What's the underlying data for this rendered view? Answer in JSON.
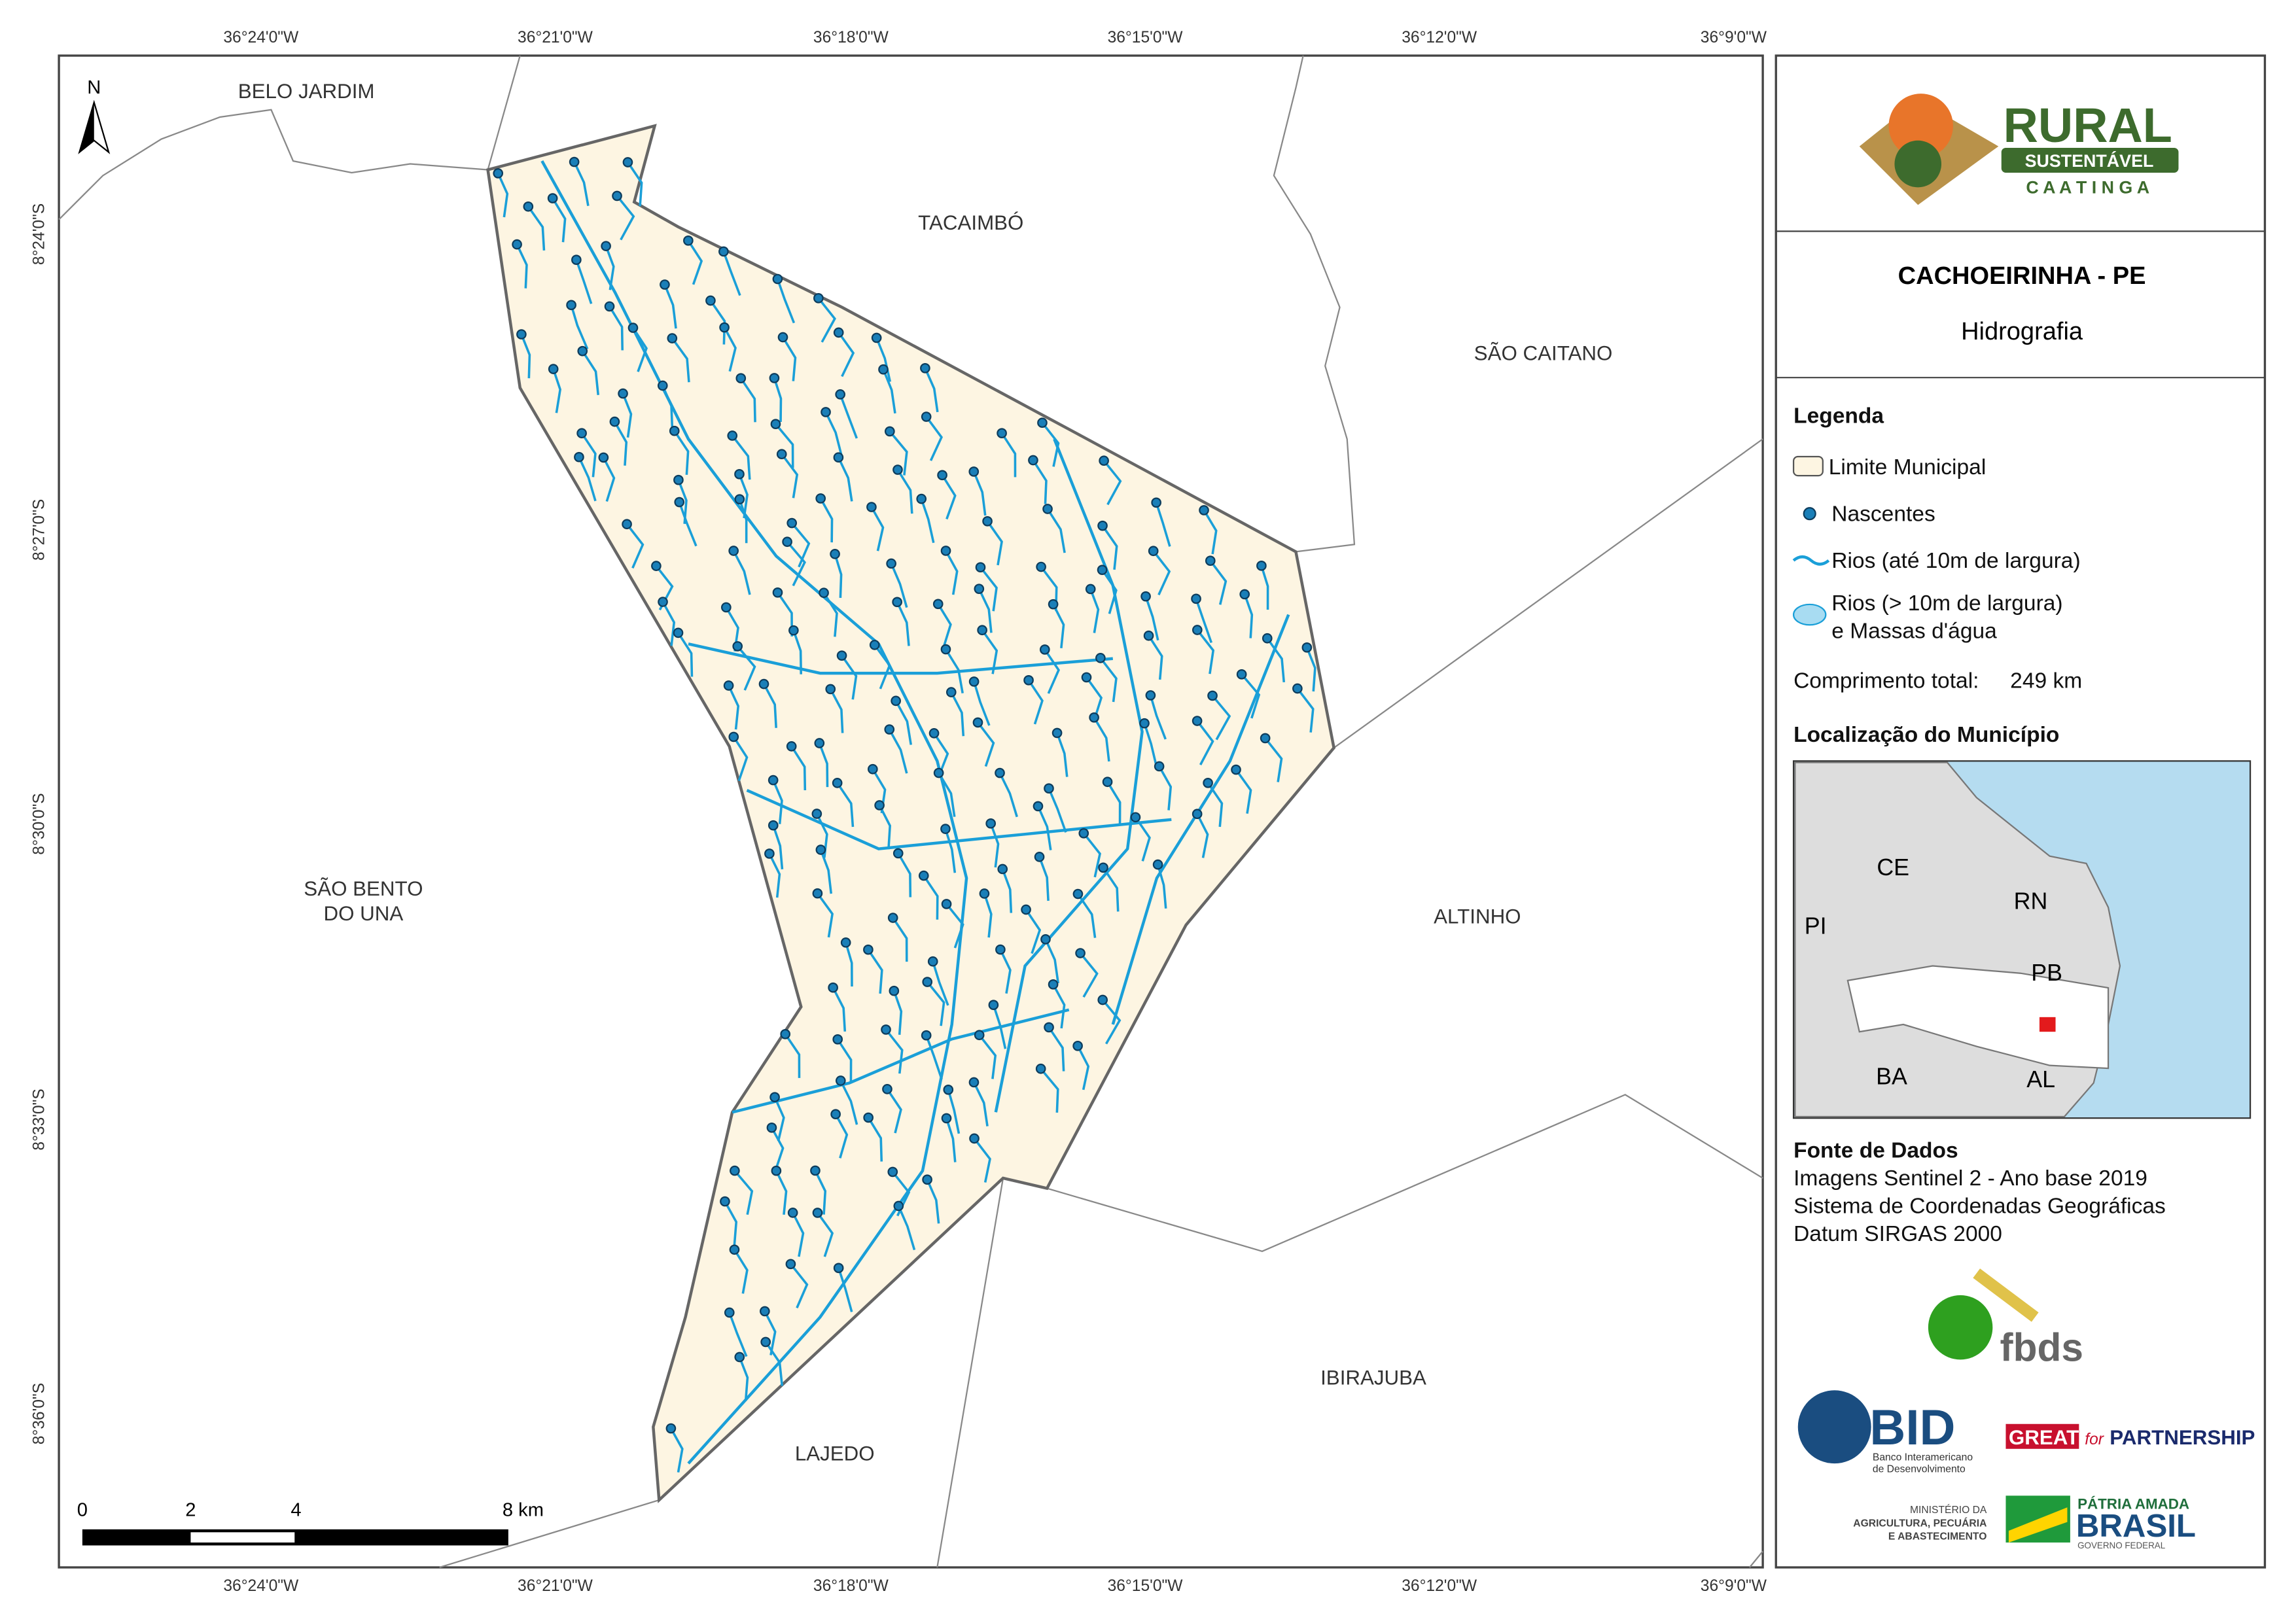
{
  "map": {
    "lon_labels": [
      "36°24'0\"W",
      "36°21'0\"W",
      "36°18'0\"W",
      "36°15'0\"W",
      "36°12'0\"W",
      "36°9'0\"W"
    ],
    "lat_labels": [
      "8°24'0\"S",
      "8°27'0\"S",
      "8°30'0\"S",
      "8°33'0\"S",
      "8°36'0\"S"
    ],
    "north": "N",
    "places": {
      "belo_jardim": "BELO JARDIM",
      "tacaimbo": "TACAIMBÓ",
      "sao_caitano": "SÃO CAITANO",
      "sao_bento": [
        "SÃO BENTO",
        "DO UNA"
      ],
      "altinho": "ALTINHO",
      "ibirajuba": "IBIRAJUBA",
      "lajedo": "LAJEDO"
    },
    "scale_labels": [
      "0",
      "2",
      "4",
      "8 km"
    ]
  },
  "header": {
    "logo_title": "RURAL",
    "logo_sub": "SUSTENTÁVEL",
    "logo_region": "C A A T I N G A"
  },
  "title": "CACHOEIRINHA - PE",
  "subtitle": "Hidrografia",
  "legend": {
    "title": "Legenda",
    "items": [
      "Limite Municipal",
      "Nascentes",
      "Rios (até 10m de largura)",
      "Rios (> 10m de largura)",
      "e Massas d'água"
    ],
    "total_label": "Comprimento total:",
    "total_value": "249 km"
  },
  "location": {
    "title": "Localização do Município",
    "states": [
      "CE",
      "RN",
      "PI",
      "PB",
      "BA",
      "AL"
    ]
  },
  "sources": {
    "title": "Fonte de Dados",
    "lines": [
      "Imagens Sentinel 2 - Ano base 2019",
      "Sistema de Coordenadas Geográficas",
      "Datum SIRGAS 2000"
    ]
  },
  "logos": {
    "fbds": "fbds",
    "bid": "BID",
    "bid_sub": [
      "Banco Interamericano",
      "de Desenvolvimento"
    ],
    "great": "GREAT",
    "great_for": "for",
    "partnership": "PARTNERSHIP",
    "ministry": [
      "MINISTÉRIO DA",
      "AGRICULTURA, PECUÁRIA",
      "E ABASTECIMENTO"
    ],
    "patria": "PÁTRIA AMADA",
    "brasil": "BRASIL",
    "gov": "GOVERNO FEDERAL"
  }
}
